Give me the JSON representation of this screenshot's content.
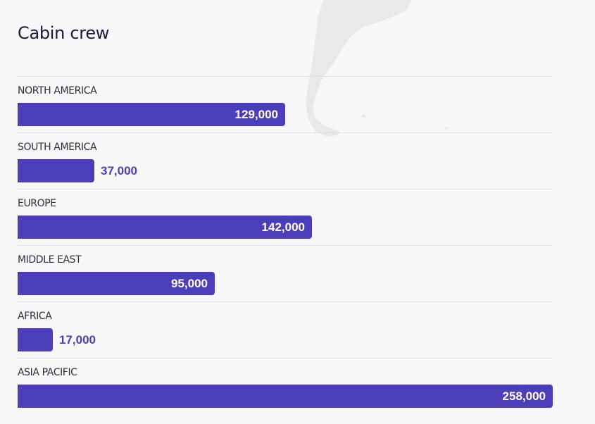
{
  "chart_data": {
    "type": "bar",
    "orientation": "horizontal",
    "title": "Cabin crew",
    "categories": [
      "NORTH AMERICA",
      "SOUTH AMERICA",
      "EUROPE",
      "MIDDLE EAST",
      "AFRICA",
      "ASIA PACIFIC"
    ],
    "values": [
      129000,
      37000,
      142000,
      95000,
      17000,
      258000
    ],
    "value_labels": [
      "129,000",
      "37,000",
      "142,000",
      "95,000",
      "17,000",
      "258,000"
    ],
    "xlim": [
      0,
      258000
    ],
    "grid": false,
    "legend": "none",
    "colors": {
      "bar": "#4b3fb9",
      "label_inside": "#ffffff",
      "label_outside": "#4b3fb9",
      "title": "#161a3d",
      "background": "#f8f8f9"
    }
  }
}
